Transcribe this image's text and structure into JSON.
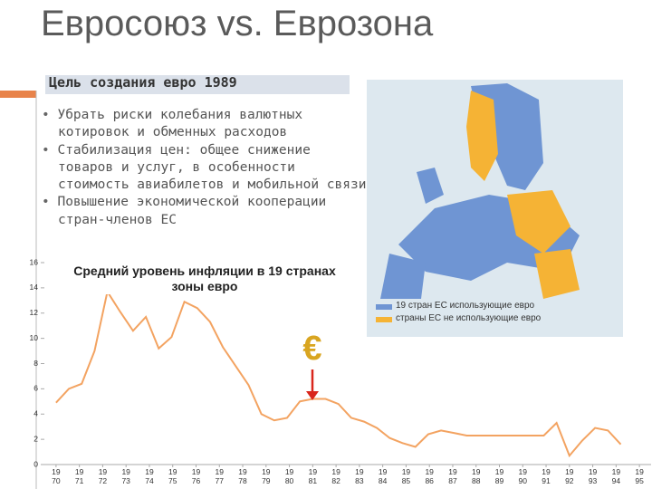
{
  "title": "Евросоюз vs. Еврозона",
  "subtitle": "Цель создания евро 1989",
  "bullets": [
    "Убрать риски колебания валютных котировок и обменных расходов",
    "Стабилизация цен: общее снижение товаров и услуг, в особенности стоимость авиабилетов и мобильной связи",
    "Повышение экономической кооперации стран-членов ЕС"
  ],
  "map_legend": [
    {
      "label": "19 стран ЕС использующие евро",
      "color": "#6f95d3"
    },
    {
      "label": "страны ЕС не использующие евро",
      "color": "#f5b335"
    }
  ],
  "chart_data": {
    "type": "line",
    "title": "Средний уровень инфляции в 19 странах зоны евро",
    "annotation": "€",
    "x": [
      1970,
      1970.55,
      1971.1,
      1971.65,
      1972.2,
      1972.75,
      1973.3,
      1973.85,
      1974.4,
      1974.95,
      1975.5,
      1976.05,
      1976.6,
      1977.15,
      1977.7,
      1978.25,
      1978.8,
      1979.35,
      1979.9,
      1980.45,
      1981,
      1981.55,
      1982.1,
      1982.65,
      1983.2,
      1983.75,
      1984.3,
      1984.85,
      1985.4,
      1985.95,
      1986.5,
      1987.05,
      1987.6,
      1988.15,
      1988.7,
      1989.25,
      1989.8,
      1990.35,
      1990.9,
      1991.45,
      1992,
      1992.55,
      1993.1,
      1993.65,
      1994.2
    ],
    "series": [
      {
        "color": "#f3a361",
        "values": [
          4.9,
          6.0,
          6.4,
          9.0,
          13.7,
          12.1,
          10.6,
          11.7,
          9.2,
          10.1,
          12.9,
          12.4,
          11.3,
          9.3,
          7.8,
          6.3,
          4.0,
          3.5,
          3.7,
          5.0,
          5.2,
          5.2,
          4.8,
          3.7,
          3.4,
          2.9,
          2.1,
          1.7,
          1.4,
          2.4,
          2.7,
          2.5,
          2.3,
          2.3,
          2.3,
          2.3,
          2.3,
          2.3,
          2.3,
          3.3,
          0.7,
          1.9,
          2.9,
          2.7,
          1.6
        ]
      }
    ],
    "xlim": [
      1969.5,
      1995.5
    ],
    "xticks": [
      1970,
      1971,
      1972,
      1973,
      1974,
      1975,
      1976,
      1977,
      1978,
      1979,
      1980,
      1981,
      1982,
      1983,
      1984,
      1985,
      1986,
      1987,
      1988,
      1989,
      1990,
      1991,
      1992,
      1993,
      1994,
      1995
    ],
    "ylim": [
      0,
      16
    ],
    "yticks": [
      0,
      2,
      4,
      6,
      8,
      10,
      12,
      14,
      16
    ]
  }
}
